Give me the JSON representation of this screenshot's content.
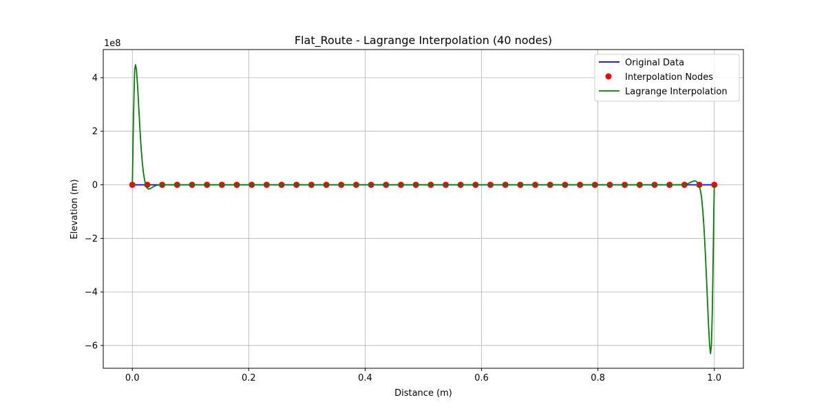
{
  "chart_data": {
    "type": "line",
    "title": "Flat_Route - Lagrange Interpolation (40 nodes)",
    "xlabel": "Distance (m)",
    "ylabel": "Elevation (m)",
    "y_offset_label": "1e8",
    "xlim": [
      -0.05,
      1.05
    ],
    "ylim": [
      -6.85,
      5.05
    ],
    "x_ticks": [
      0.0,
      0.2,
      0.4,
      0.6,
      0.8,
      1.0
    ],
    "x_tick_labels": [
      "0.0",
      "0.2",
      "0.4",
      "0.6",
      "0.8",
      "1.0"
    ],
    "y_ticks": [
      -6,
      -4,
      -2,
      0,
      2,
      4
    ],
    "y_tick_labels": [
      "−6",
      "−4",
      "−2",
      "0",
      "2",
      "4"
    ],
    "grid": true,
    "legend_position": "top-right",
    "series": [
      {
        "name": "Original Data",
        "kind": "line",
        "color": "#0000ff",
        "x": [
          0.0,
          1.0
        ],
        "y": [
          0,
          0
        ]
      },
      {
        "name": "Interpolation Nodes",
        "kind": "scatter",
        "color": "#ff0000",
        "x": [
          0.0,
          0.02564,
          0.05128,
          0.07692,
          0.10256,
          0.12821,
          0.15385,
          0.17949,
          0.20513,
          0.23077,
          0.25641,
          0.28205,
          0.30769,
          0.33333,
          0.35897,
          0.38462,
          0.41026,
          0.4359,
          0.46154,
          0.48718,
          0.51282,
          0.53846,
          0.5641,
          0.58974,
          0.61538,
          0.64103,
          0.66667,
          0.69231,
          0.71795,
          0.74359,
          0.76923,
          0.79487,
          0.82051,
          0.84615,
          0.87179,
          0.89744,
          0.92308,
          0.94872,
          0.97436,
          1.0
        ],
        "y": [
          0,
          0,
          0,
          0,
          0,
          0,
          0,
          0,
          0,
          0,
          0,
          0,
          0,
          0,
          0,
          0,
          0,
          0,
          0,
          0,
          0,
          0,
          0,
          0,
          0,
          0,
          0,
          0,
          0,
          0,
          0,
          0,
          0,
          0,
          0,
          0,
          0,
          0,
          0,
          0
        ]
      },
      {
        "name": "Lagrange Interpolation",
        "kind": "line",
        "color": "#008000",
        "x": [
          0.0,
          0.002,
          0.004,
          0.0055,
          0.007,
          0.009,
          0.011,
          0.013,
          0.015,
          0.017,
          0.019,
          0.021,
          0.023,
          0.025,
          0.0265,
          0.028,
          0.031,
          0.034,
          0.037,
          0.04,
          0.044,
          0.048,
          0.0513,
          0.06,
          0.5,
          0.94,
          0.949,
          0.955,
          0.962,
          0.966,
          0.969,
          0.972,
          0.974,
          0.976,
          0.978,
          0.98,
          0.982,
          0.984,
          0.986,
          0.988,
          0.99,
          0.992,
          0.9935,
          0.995,
          0.9965,
          0.998,
          0.999,
          1.0
        ],
        "y": [
          0,
          2.6,
          4.3,
          4.48,
          4.3,
          3.7,
          2.9,
          2.1,
          1.4,
          0.85,
          0.45,
          0.18,
          0.0,
          -0.1,
          -0.14,
          -0.16,
          -0.14,
          -0.1,
          -0.06,
          -0.03,
          -0.01,
          0.0,
          0.0,
          0.0,
          0.0,
          0.0,
          0.0,
          0.05,
          0.12,
          0.15,
          0.13,
          0.05,
          -0.05,
          -0.2,
          -0.45,
          -0.9,
          -1.5,
          -2.3,
          -3.2,
          -4.2,
          -5.2,
          -6.0,
          -6.3,
          -6.0,
          -4.8,
          -2.8,
          -1.2,
          0
        ]
      }
    ]
  }
}
